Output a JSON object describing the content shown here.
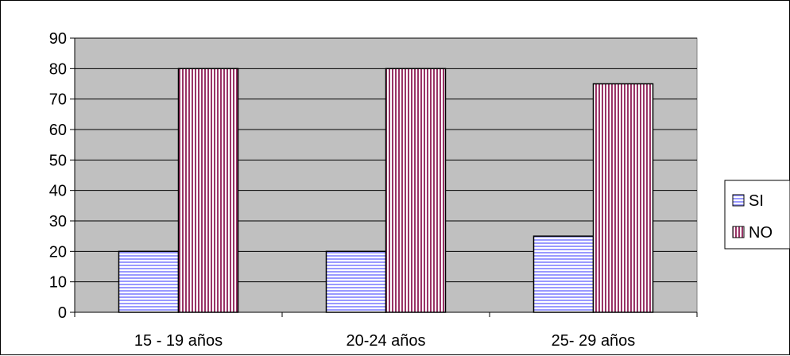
{
  "chart_data": {
    "type": "bar",
    "title": "",
    "xlabel": "",
    "ylabel": "",
    "categories": [
      "15 - 19 años",
      "20-24 años",
      "25- 29 años"
    ],
    "series": [
      {
        "name": "SI",
        "values": [
          20,
          20,
          25
        ],
        "color": "#9999ff",
        "pattern": "horizontal-stripes"
      },
      {
        "name": "NO",
        "values": [
          80,
          80,
          75
        ],
        "color": "#993366",
        "pattern": "vertical-stripes"
      }
    ],
    "ylim": [
      0,
      90
    ],
    "yticks": [
      0,
      10,
      20,
      30,
      40,
      50,
      60,
      70,
      80,
      90
    ],
    "grid": true,
    "plot_background": "#c0c0c0",
    "legend_position": "right"
  }
}
